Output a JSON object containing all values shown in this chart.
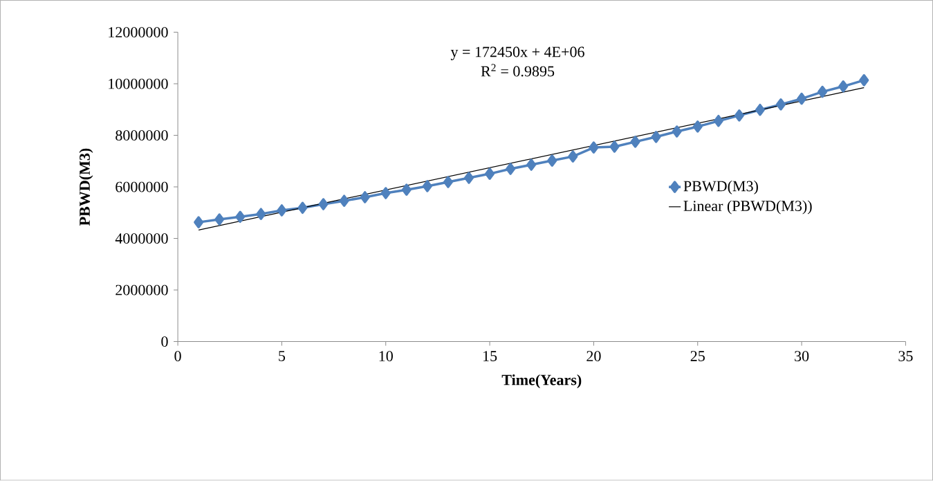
{
  "chart_data": {
    "type": "line",
    "xlabel": "Time(Years)",
    "ylabel": "PBWD(M3)",
    "x": [
      1,
      2,
      3,
      4,
      5,
      6,
      7,
      8,
      9,
      10,
      11,
      12,
      13,
      14,
      15,
      16,
      17,
      18,
      19,
      20,
      21,
      22,
      23,
      24,
      25,
      26,
      27,
      28,
      29,
      30,
      31,
      32,
      33
    ],
    "series": [
      {
        "name": "PBWD(M3)",
        "color": "#4f81bd",
        "values": [
          4630000,
          4740000,
          4840000,
          4950000,
          5090000,
          5190000,
          5330000,
          5460000,
          5600000,
          5760000,
          5890000,
          6030000,
          6190000,
          6350000,
          6510000,
          6700000,
          6860000,
          7020000,
          7180000,
          7530000,
          7560000,
          7750000,
          7940000,
          8150000,
          8340000,
          8560000,
          8770000,
          8990000,
          9200000,
          9420000,
          9690000,
          9900000,
          10140000
        ]
      },
      {
        "name": "Linear (PBWD(M3))",
        "color": "#000000",
        "type": "line",
        "marker": "none",
        "x": [
          1,
          33
        ],
        "values": [
          4330000,
          9850000
        ]
      }
    ],
    "xlim": [
      0,
      35
    ],
    "xticks": [
      0,
      5,
      10,
      15,
      20,
      25,
      30,
      35
    ],
    "ylim": [
      0,
      12000000
    ],
    "yticks": [
      0,
      2000000,
      4000000,
      6000000,
      8000000,
      10000000,
      12000000
    ],
    "annotations": [
      "y = 172450x + 4E+06",
      "R$^{2}$ = 0.9895"
    ],
    "grid": false,
    "legend": "right",
    "marker": "diamond",
    "line_style": "solid"
  }
}
